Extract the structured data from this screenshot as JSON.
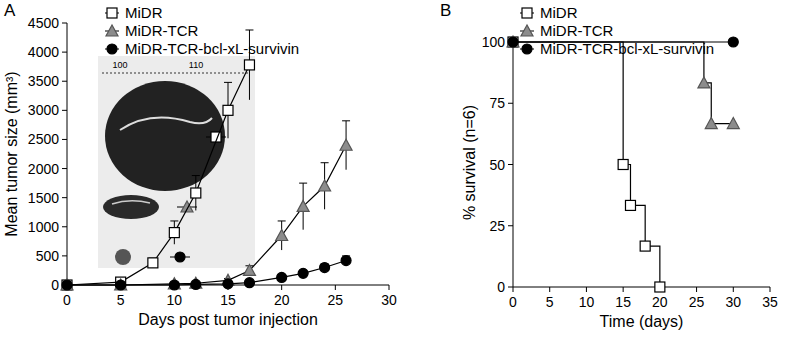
{
  "chart_data": [
    {
      "type": "line",
      "title": "A",
      "x_label": "Days post tumor injection",
      "y_label": "Mean tumor size (mm³)",
      "xlim": [
        0,
        30
      ],
      "xticks": [
        0,
        5,
        10,
        15,
        20,
        25,
        30
      ],
      "ylim": [
        0,
        4500
      ],
      "yticks": [
        0,
        500,
        1000,
        1500,
        2000,
        2500,
        3000,
        3500,
        4000,
        4500
      ],
      "legend": "top-left",
      "annotations": [
        "100",
        "110"
      ],
      "series": [
        {
          "name": "MiDR",
          "color": "#ffffff",
          "marker": "square",
          "x": [
            0,
            5,
            8,
            10,
            12,
            15,
            17
          ],
          "values": [
            0,
            50,
            380,
            900,
            1580,
            3000,
            3780
          ],
          "errors": [
            0,
            20,
            80,
            200,
            300,
            480,
            600
          ]
        },
        {
          "name": "MiDR-TCR",
          "color": "#8c8c8c",
          "marker": "triangle",
          "x": [
            0,
            5,
            10,
            12,
            15,
            17,
            20,
            22,
            24,
            26
          ],
          "values": [
            0,
            0,
            20,
            30,
            80,
            250,
            850,
            1350,
            1700,
            2400
          ],
          "errors": [
            0,
            0,
            10,
            10,
            30,
            80,
            250,
            400,
            400,
            420
          ]
        },
        {
          "name": "MiDR-TCR-bcl-xL-survivin",
          "color": "#000000",
          "marker": "circle",
          "x": [
            0,
            5,
            10,
            12,
            15,
            17,
            20,
            22,
            24,
            26
          ],
          "values": [
            0,
            0,
            0,
            10,
            20,
            40,
            130,
            200,
            300,
            420
          ],
          "errors": [
            0,
            0,
            0,
            5,
            10,
            20,
            50,
            50,
            60,
            80
          ]
        }
      ]
    },
    {
      "type": "line",
      "title": "B",
      "x_label": "Time (days)",
      "y_label": "% survival (n=6)",
      "xlim": [
        0,
        35
      ],
      "xticks": [
        0,
        5,
        10,
        15,
        20,
        25,
        30,
        35
      ],
      "ylim": [
        0,
        100
      ],
      "yticks": [
        0,
        25,
        50,
        75,
        100
      ],
      "legend": "top-left",
      "line_style": "step",
      "series": [
        {
          "name": "MiDR",
          "color": "#ffffff",
          "marker": "square",
          "x": [
            0,
            15,
            16,
            18,
            20
          ],
          "values": [
            100,
            50,
            33.3,
            16.7,
            0
          ]
        },
        {
          "name": "MiDR-TCR",
          "color": "#8c8c8c",
          "marker": "triangle",
          "x": [
            0,
            26,
            27,
            30
          ],
          "values": [
            100,
            83.3,
            66.7,
            66.7
          ]
        },
        {
          "name": "MiDR-TCR-bcl-xL-survivin",
          "color": "#000000",
          "marker": "circle",
          "x": [
            0,
            30
          ],
          "values": [
            100,
            100
          ]
        }
      ]
    }
  ]
}
